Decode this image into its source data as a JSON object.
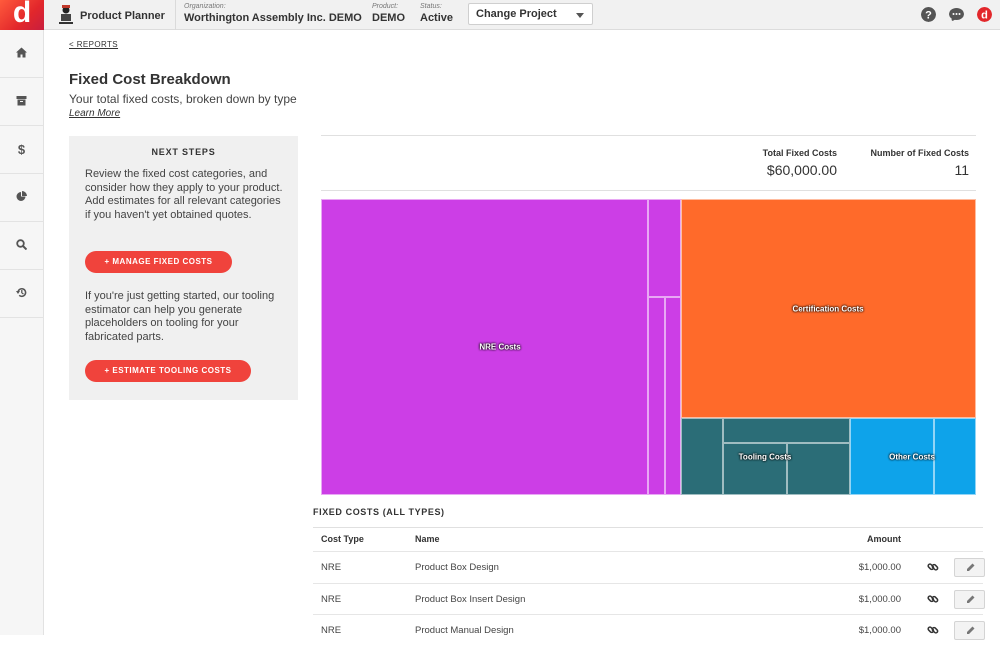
{
  "topbar": {
    "brand": "d",
    "app_name": "Product Planner",
    "organization": {
      "label": "Organization:",
      "value": "Worthington Assembly Inc. DEMO"
    },
    "product": {
      "label": "Product:",
      "value": "DEMO"
    },
    "status": {
      "label": "Status:",
      "value": "Active"
    },
    "change_project": "Change Project",
    "icons": [
      "help-icon",
      "chat-icon",
      "user-avatar-icon"
    ]
  },
  "sidebar": {
    "items": [
      "home-icon",
      "archive-icon",
      "dollar-icon",
      "pie-chart-icon",
      "search-icon",
      "history-icon"
    ]
  },
  "page": {
    "back_link": "< REPORTS",
    "title": "Fixed Cost Breakdown",
    "subtitle": "Your total fixed costs, broken down by type",
    "learn_more": "Learn More"
  },
  "next_steps": {
    "title": "NEXT STEPS",
    "text1": "Review the fixed cost categories, and consider how they apply to your product. Add estimates for all relevant categories if you haven't yet obtained quotes.",
    "button1": "+ MANAGE FIXED COSTS",
    "text2": "If you're just getting started, our tooling estimator can help you generate placeholders on tooling for your fabricated parts.",
    "button2": "+ ESTIMATE TOOLING COSTS"
  },
  "stats": {
    "total_label": "Total Fixed Costs",
    "total_value": "$60,000.00",
    "count_label": "Number of Fixed Costs",
    "count_value": "11"
  },
  "treemap": {
    "colors": {
      "nre": "#cc3ee6",
      "certification": "#ff6a2a",
      "tooling": "#2b6d77",
      "other": "#0ea3ea"
    },
    "labels": {
      "nre": "NRE Costs",
      "certification": "Certification Costs",
      "tooling": "Tooling Costs",
      "other": "Other Costs"
    }
  },
  "table": {
    "title": "FIXED COSTS (ALL TYPES)",
    "headers": {
      "type": "Cost Type",
      "name": "Name",
      "amount": "Amount"
    },
    "rows": [
      {
        "type": "NRE",
        "name": "Product Box Design",
        "amount": "$1,000.00"
      },
      {
        "type": "NRE",
        "name": "Product Box Insert Design",
        "amount": "$1,000.00"
      },
      {
        "type": "NRE",
        "name": "Product Manual Design",
        "amount": "$1,000.00"
      }
    ]
  }
}
